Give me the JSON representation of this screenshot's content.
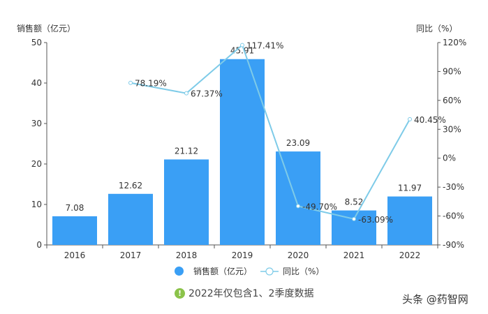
{
  "chart_data": {
    "type": "bar+line",
    "categories": [
      "2016",
      "2017",
      "2018",
      "2019",
      "2020",
      "2021",
      "2022"
    ],
    "series": [
      {
        "name": "销售额（亿元）",
        "type": "bar",
        "axis": "left",
        "color": "#3a9ff5",
        "values": [
          7.08,
          12.62,
          21.12,
          45.91,
          23.09,
          8.52,
          11.97
        ],
        "labels": [
          "7.08",
          "12.62",
          "21.12",
          "45.91",
          "23.09",
          "8.52",
          "11.97"
        ]
      },
      {
        "name": "同比（%）",
        "type": "line",
        "axis": "right",
        "color": "#7ecbe8",
        "values": [
          null,
          78.19,
          67.37,
          117.41,
          -49.7,
          -63.09,
          40.45
        ],
        "labels": [
          "",
          "78.19%",
          "67.37%",
          "117.41%",
          "-49.70%",
          "-63.09%",
          "40.45%"
        ]
      }
    ],
    "ylabel": "销售额（亿元）",
    "y2label": "同比（%）",
    "ylim": [
      0,
      50
    ],
    "yticks": [
      "0",
      "10",
      "20",
      "30",
      "40",
      "50"
    ],
    "y2lim": [
      -90,
      120
    ],
    "y2ticks": [
      "-90%",
      "-60%",
      "-30%",
      "0%",
      "30%",
      "60%",
      "90%",
      "120%"
    ],
    "legend_position": "bottom",
    "grid": false
  },
  "axes": {
    "left_title": "销售额（亿元）",
    "right_title": "同比（%）"
  },
  "legend": {
    "bar_label": "销售额（亿元）",
    "line_label": "同比（%）"
  },
  "note": {
    "icon": "exclamation-icon",
    "text": "2022年仅包含1、2季度数据"
  },
  "watermark": "头条 @药智网"
}
